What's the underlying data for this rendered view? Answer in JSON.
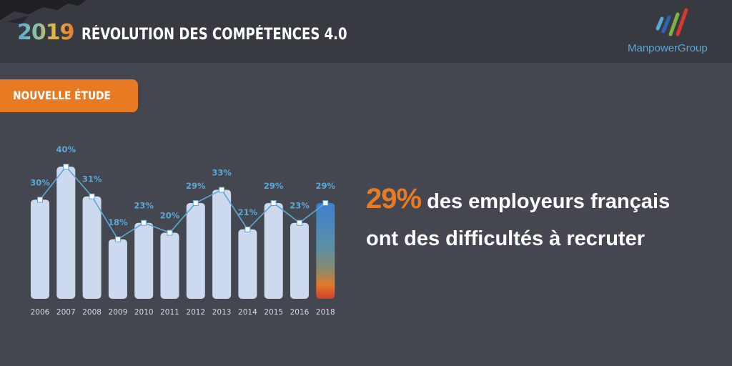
{
  "header": {
    "year": "2019",
    "title": "RÉVOLUTION DES COMPÉTENCES 4.0",
    "logo_text": "ManpowerGroup",
    "logo_icon": "manpowergroup-logo-icon"
  },
  "badge": {
    "label": "NOUVELLE ÉTUDE"
  },
  "headline": {
    "highlight": "29%",
    "line1_rest": " des employeurs français",
    "line2": "ont des difficultés à recruter"
  },
  "colors": {
    "background": "#444750",
    "header": "#383a42",
    "accent": "#e87a24",
    "bar": "#cdd9ef",
    "line": "#5aa7d8",
    "label": "#5aa7d8"
  },
  "chart_data": {
    "type": "bar",
    "categories": [
      "2006",
      "2007",
      "2008",
      "2009",
      "2010",
      "2011",
      "2012",
      "2013",
      "2014",
      "2015",
      "2016",
      "2018"
    ],
    "values": [
      30,
      40,
      31,
      18,
      23,
      20,
      29,
      33,
      21,
      29,
      23,
      29
    ],
    "data_labels": [
      "30%",
      "40%",
      "31%",
      "18%",
      "23%",
      "20%",
      "29%",
      "33%",
      "21%",
      "29%",
      "23%",
      "29%"
    ],
    "overlay_line": true,
    "highlighted_category": "2018",
    "title": "",
    "xlabel": "",
    "ylabel": "",
    "ylim": [
      0,
      45
    ],
    "grid": false
  }
}
